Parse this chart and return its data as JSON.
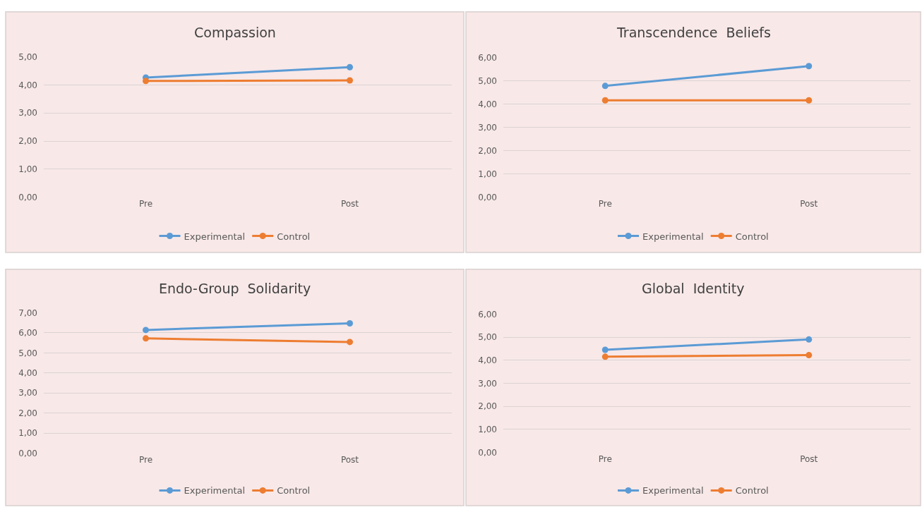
{
  "chart_data": [
    {
      "type": "line",
      "title": "Compassion",
      "categories": [
        "Pre",
        "Post"
      ],
      "ylim": [
        0,
        5
      ],
      "yticks": [
        {
          "value": 0,
          "label": "0,00"
        },
        {
          "value": 1,
          "label": "1,00"
        },
        {
          "value": 2,
          "label": "2,00"
        },
        {
          "value": 3,
          "label": "3,00"
        },
        {
          "value": 4,
          "label": "4,00"
        },
        {
          "value": 5,
          "label": "5,00"
        }
      ],
      "grid": "y",
      "legend": "bottom",
      "marker": "circle",
      "line_style": "solid",
      "series": [
        {
          "name": "Experimental",
          "color": "#5b9bd5",
          "values": [
            4.26,
            4.63
          ]
        },
        {
          "name": "Control",
          "color": "#ed7d31",
          "values": [
            4.14,
            4.16
          ]
        }
      ]
    },
    {
      "type": "line",
      "title": "Transcendence  Beliefs",
      "categories": [
        "Pre",
        "Post"
      ],
      "ylim": [
        0,
        6
      ],
      "yticks": [
        {
          "value": 0,
          "label": "0,00"
        },
        {
          "value": 1,
          "label": "1,00"
        },
        {
          "value": 2,
          "label": "2,00"
        },
        {
          "value": 3,
          "label": "3,00"
        },
        {
          "value": 4,
          "label": "4,00"
        },
        {
          "value": 5,
          "label": "5,00"
        },
        {
          "value": 6,
          "label": "6,00"
        }
      ],
      "grid": "y",
      "legend": "bottom",
      "marker": "circle",
      "line_style": "solid",
      "series": [
        {
          "name": "Experimental",
          "color": "#5b9bd5",
          "values": [
            4.78,
            5.63
          ]
        },
        {
          "name": "Control",
          "color": "#ed7d31",
          "values": [
            4.16,
            4.16
          ]
        }
      ]
    },
    {
      "type": "line",
      "title": "Endo-Group  Solidarity",
      "categories": [
        "Pre",
        "Post"
      ],
      "ylim": [
        0,
        7
      ],
      "yticks": [
        {
          "value": 0,
          "label": "0,00"
        },
        {
          "value": 1,
          "label": "1,00"
        },
        {
          "value": 2,
          "label": "2,00"
        },
        {
          "value": 3,
          "label": "3,00"
        },
        {
          "value": 4,
          "label": "4,00"
        },
        {
          "value": 5,
          "label": "5,00"
        },
        {
          "value": 6,
          "label": "6,00"
        },
        {
          "value": 7,
          "label": "7,00"
        }
      ],
      "grid": "y",
      "legend": "bottom",
      "marker": "circle",
      "line_style": "solid",
      "series": [
        {
          "name": "Experimental",
          "color": "#5b9bd5",
          "values": [
            6.14,
            6.47
          ]
        },
        {
          "name": "Control",
          "color": "#ed7d31",
          "values": [
            5.72,
            5.54
          ]
        }
      ]
    },
    {
      "type": "line",
      "title": "Global  Identity",
      "categories": [
        "Pre",
        "Post"
      ],
      "ylim": [
        0,
        6
      ],
      "yticks": [
        {
          "value": 0,
          "label": "0,00"
        },
        {
          "value": 1,
          "label": "1,00"
        },
        {
          "value": 2,
          "label": "2,00"
        },
        {
          "value": 3,
          "label": "3,00"
        },
        {
          "value": 4,
          "label": "4,00"
        },
        {
          "value": 5,
          "label": "5,00"
        },
        {
          "value": 6,
          "label": "6,00"
        }
      ],
      "grid": "y",
      "legend": "bottom",
      "marker": "circle",
      "line_style": "solid",
      "series": [
        {
          "name": "Experimental",
          "color": "#5b9bd5",
          "values": [
            4.45,
            4.9
          ]
        },
        {
          "name": "Control",
          "color": "#ed7d31",
          "values": [
            4.15,
            4.22
          ]
        }
      ]
    }
  ]
}
